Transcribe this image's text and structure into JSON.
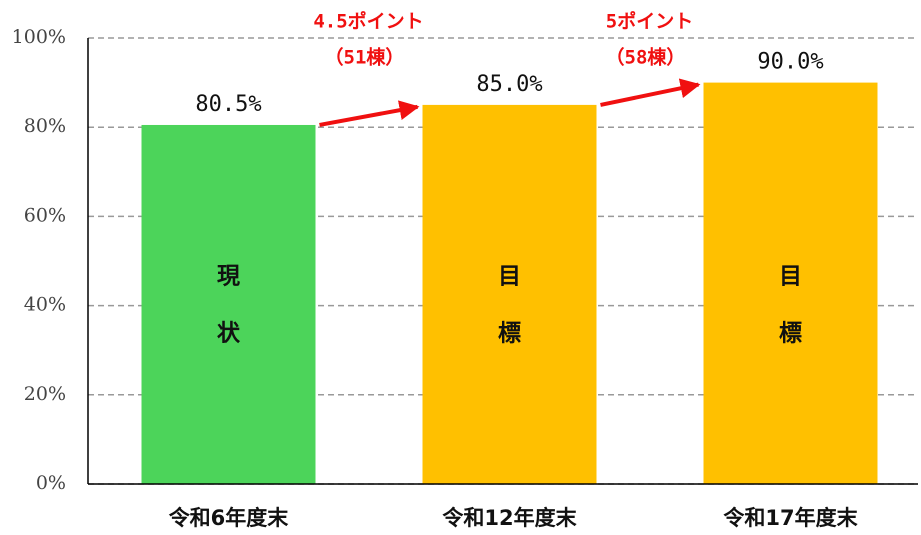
{
  "chart_data": {
    "type": "bar",
    "categories": [
      "令和6年度末",
      "令和12年度末",
      "令和17年度末"
    ],
    "values": [
      80.5,
      85.0,
      90.0
    ],
    "value_labels": [
      "80.5%",
      "85.0%",
      "90.0%"
    ],
    "colors": [
      "#4cd45a",
      "#ffc000",
      "#ffc000"
    ],
    "inner_labels": [
      [
        "現",
        "状"
      ],
      [
        "目",
        "標"
      ],
      [
        "目",
        "標"
      ]
    ],
    "annotations": [
      {
        "text": "4.5ポイント",
        "subtext": "（51棟）"
      },
      {
        "text": "5ポイント",
        "subtext": "（58棟）"
      }
    ],
    "ylim": [
      0,
      100
    ],
    "yticks": [
      {
        "value": 0,
        "label": "0%"
      },
      {
        "value": 20,
        "label": "20%"
      },
      {
        "value": 40,
        "label": "40%"
      },
      {
        "value": 60,
        "label": "60%"
      },
      {
        "value": 80,
        "label": "80%"
      },
      {
        "value": 100,
        "label": "100%"
      }
    ],
    "grid": true
  }
}
